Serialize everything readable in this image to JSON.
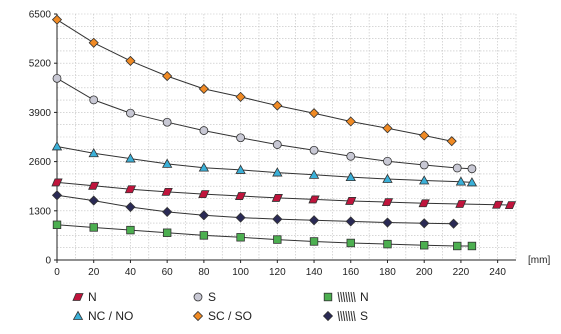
{
  "chart_data": {
    "type": "line",
    "unit_label": "[mm]",
    "xlim": [
      0,
      250
    ],
    "ylim": [
      0,
      6500
    ],
    "x_ticks": [
      0,
      20,
      40,
      60,
      80,
      100,
      120,
      140,
      160,
      180,
      200,
      220,
      240
    ],
    "y_ticks": [
      0,
      1300,
      2600,
      3900,
      5200,
      6500
    ],
    "grid": true,
    "legend_placement": "bottom",
    "series": [
      {
        "name": "N",
        "marker": "parallelogram",
        "color": "#c0143c",
        "points": [
          [
            0,
            2050
          ],
          [
            20,
            1960
          ],
          [
            40,
            1870
          ],
          [
            60,
            1800
          ],
          [
            80,
            1740
          ],
          [
            100,
            1690
          ],
          [
            120,
            1640
          ],
          [
            140,
            1600
          ],
          [
            160,
            1560
          ],
          [
            180,
            1530
          ],
          [
            200,
            1500
          ],
          [
            220,
            1480
          ],
          [
            240,
            1460
          ],
          [
            247,
            1450
          ]
        ]
      },
      {
        "name": "NC / NO",
        "marker": "triangle",
        "color": "#3ab0d8",
        "points": [
          [
            0,
            3000
          ],
          [
            20,
            2820
          ],
          [
            40,
            2680
          ],
          [
            60,
            2540
          ],
          [
            80,
            2440
          ],
          [
            100,
            2380
          ],
          [
            120,
            2310
          ],
          [
            140,
            2250
          ],
          [
            160,
            2190
          ],
          [
            180,
            2140
          ],
          [
            200,
            2100
          ],
          [
            220,
            2070
          ],
          [
            226,
            2050
          ]
        ]
      },
      {
        "name": "S",
        "marker": "circle",
        "color": "#c8c8d4",
        "points": [
          [
            0,
            4800
          ],
          [
            20,
            4230
          ],
          [
            40,
            3880
          ],
          [
            60,
            3640
          ],
          [
            80,
            3420
          ],
          [
            100,
            3230
          ],
          [
            120,
            3050
          ],
          [
            140,
            2900
          ],
          [
            160,
            2740
          ],
          [
            180,
            2610
          ],
          [
            200,
            2510
          ],
          [
            218,
            2430
          ],
          [
            226,
            2410
          ]
        ]
      },
      {
        "name": "SC / SO",
        "marker": "diamond",
        "color": "#f08a24",
        "points": [
          [
            0,
            6350
          ],
          [
            20,
            5740
          ],
          [
            40,
            5260
          ],
          [
            60,
            4860
          ],
          [
            80,
            4520
          ],
          [
            100,
            4310
          ],
          [
            120,
            4080
          ],
          [
            140,
            3880
          ],
          [
            160,
            3660
          ],
          [
            180,
            3480
          ],
          [
            200,
            3290
          ],
          [
            215,
            3140
          ]
        ]
      },
      {
        "name": "N",
        "symbol": "spring-glyph",
        "marker": "square",
        "color": "#4caf50",
        "points": [
          [
            0,
            930
          ],
          [
            20,
            860
          ],
          [
            40,
            790
          ],
          [
            60,
            720
          ],
          [
            80,
            650
          ],
          [
            100,
            600
          ],
          [
            120,
            540
          ],
          [
            140,
            490
          ],
          [
            160,
            450
          ],
          [
            180,
            420
          ],
          [
            200,
            390
          ],
          [
            218,
            370
          ],
          [
            226,
            370
          ]
        ]
      },
      {
        "name": "S",
        "symbol": "spring-glyph",
        "marker": "diamond",
        "color": "#2a2a55",
        "points": [
          [
            0,
            1710
          ],
          [
            20,
            1570
          ],
          [
            40,
            1400
          ],
          [
            60,
            1270
          ],
          [
            80,
            1180
          ],
          [
            100,
            1120
          ],
          [
            120,
            1080
          ],
          [
            140,
            1050
          ],
          [
            160,
            1020
          ],
          [
            180,
            990
          ],
          [
            200,
            970
          ],
          [
            216,
            960
          ]
        ]
      }
    ]
  }
}
